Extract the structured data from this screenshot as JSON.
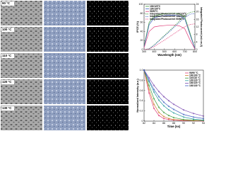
{
  "image_grid": {
    "labels": [
      "90 °C",
      "100 °C",
      "110 °C",
      "120 °C",
      "130 °C"
    ]
  },
  "chart_data": [
    {
      "type": "line",
      "x_label": "Wavelength (nm)",
      "y_label": "IPCE (%)",
      "y2_label": "Integrated Photocurrent (mA cm-2)",
      "x": [
        300,
        350,
        400,
        450,
        500,
        550,
        600,
        650,
        700,
        750,
        800
      ],
      "xlim": [
        300,
        800
      ],
      "xticks": [
        300,
        400,
        500,
        600,
        700,
        800
      ],
      "ylim": [
        0,
        100
      ],
      "yticks": [
        0,
        20,
        40,
        60,
        80,
        100
      ],
      "y2lim": [
        0,
        24
      ],
      "y2ticks": [
        0,
        4,
        8,
        12,
        16,
        20,
        24
      ],
      "series": [
        {
          "name": "130/120°C",
          "color": "#3a9a3a",
          "values": [
            8,
            60,
            74,
            77,
            79,
            80,
            80,
            78,
            72,
            38,
            2
          ]
        },
        {
          "name": "130/130°C",
          "color": "#4060c0",
          "values": [
            6,
            55,
            70,
            73,
            75,
            76,
            76,
            74,
            68,
            34,
            2
          ]
        },
        {
          "name": "90/90°C",
          "color": "#e0407a",
          "values": [
            4,
            40,
            50,
            52,
            53,
            54,
            54,
            52,
            46,
            22,
            1
          ]
        },
        {
          "name": "Integrated Photocurrent 130/120°C",
          "color": "#3a9a3a",
          "axis": "y2",
          "values": [
            0,
            0.5,
            2.5,
            5,
            7.5,
            10,
            12.6,
            15.3,
            17.9,
            19.7,
            20.1
          ]
        },
        {
          "name": "Integrated Photocurrent 130/130°C",
          "color": "#4060c0",
          "axis": "y2",
          "values": [
            0,
            0.4,
            2.3,
            4.7,
            7.1,
            9.5,
            12,
            14.5,
            17,
            18.7,
            19.1
          ]
        },
        {
          "name": "Integrated Photocurrent 90/90°C",
          "color": "#e0407a",
          "axis": "y2",
          "values": [
            0,
            0.3,
            1.6,
            3.3,
            5,
            6.8,
            8.6,
            10.4,
            12.1,
            13.3,
            13.6
          ]
        }
      ]
    },
    {
      "type": "line",
      "x_label": "Time (ns)",
      "y_label": "Normalized Intensity (a.u.)",
      "x": [
        82,
        83,
        84,
        85,
        86,
        87,
        88,
        90,
        92,
        94
      ],
      "xlim": [
        82,
        94
      ],
      "xticks": [
        82,
        84,
        86,
        88,
        90,
        92,
        94
      ],
      "ylim": [
        0,
        1.0
      ],
      "yticks": [
        0.0,
        0.2,
        0.4,
        0.6,
        0.8,
        {
          "value": 1.0,
          "label": "1.0"
        }
      ],
      "series": [
        {
          "name": "90/90 °C",
          "color": "#e0407a",
          "values": [
            1.0,
            0.55,
            0.25,
            0.11,
            0.05,
            0.03,
            0.02,
            0.01,
            0.01,
            0.0
          ]
        },
        {
          "name": "100/100 °C",
          "color": "#d08030",
          "values": [
            1.0,
            0.62,
            0.33,
            0.17,
            0.09,
            0.05,
            0.03,
            0.02,
            0.01,
            0.01
          ]
        },
        {
          "name": "110/110 °C",
          "color": "#3a9a3a",
          "values": [
            1.0,
            0.7,
            0.44,
            0.27,
            0.17,
            0.11,
            0.07,
            0.03,
            0.02,
            0.01
          ]
        },
        {
          "name": "120/120 °C",
          "color": "#30a0a0",
          "values": [
            1.0,
            0.78,
            0.57,
            0.41,
            0.3,
            0.22,
            0.16,
            0.08,
            0.04,
            0.02
          ]
        },
        {
          "name": "130/120 °C",
          "color": "#7a4ab0",
          "values": [
            1.0,
            0.85,
            0.7,
            0.58,
            0.48,
            0.4,
            0.33,
            0.22,
            0.15,
            0.1
          ]
        },
        {
          "name": "130/130 °C",
          "color": "#4060c0",
          "values": [
            1.0,
            0.8,
            0.62,
            0.48,
            0.37,
            0.29,
            0.23,
            0.13,
            0.08,
            0.05
          ]
        }
      ]
    }
  ]
}
